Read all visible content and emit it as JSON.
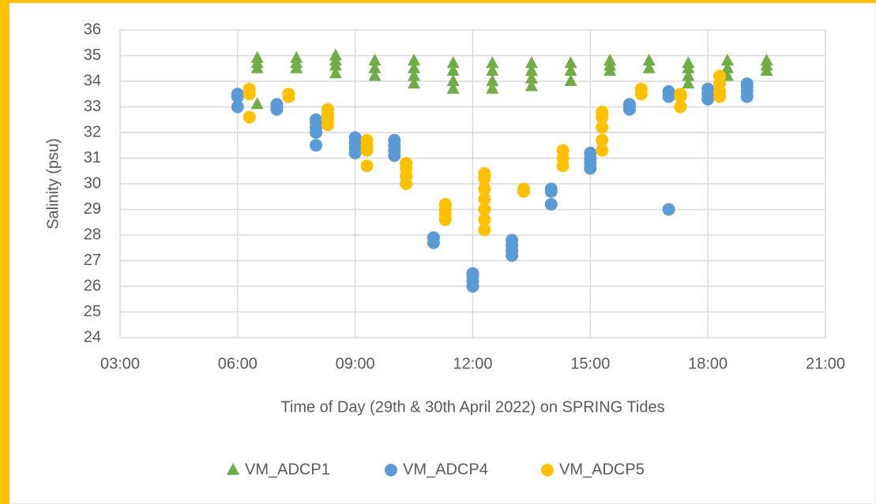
{
  "chart_data": {
    "type": "scatter",
    "xlabel": "Time of Day (29th & 30th April 2022) on SPRING Tides",
    "ylabel": "Salinity (psu)",
    "xlim": [
      3,
      21
    ],
    "xticks": [
      {
        "value": 3,
        "label": "03:00"
      },
      {
        "value": 6,
        "label": "06:00"
      },
      {
        "value": 9,
        "label": "09:00"
      },
      {
        "value": 12,
        "label": "12:00"
      },
      {
        "value": 15,
        "label": "15:00"
      },
      {
        "value": 18,
        "label": "18:00"
      },
      {
        "value": 21,
        "label": "21:00"
      }
    ],
    "ylim": [
      24,
      36
    ],
    "yticks": [
      24,
      25,
      26,
      27,
      28,
      29,
      30,
      31,
      32,
      33,
      34,
      35,
      36
    ],
    "grid": true,
    "legend": "bottom",
    "series": [
      {
        "name": "VM_ADCP1",
        "color": "#70ad47",
        "marker": "triangle",
        "x": [
          6.5,
          6.5,
          6.5,
          6.5,
          7.5,
          7.5,
          7.5,
          8.5,
          8.5,
          8.5,
          8.5,
          9.5,
          9.5,
          9.5,
          10.5,
          10.5,
          10.5,
          10.5,
          11.5,
          11.5,
          11.5,
          11.5,
          12.5,
          12.5,
          12.5,
          12.5,
          13.5,
          13.5,
          13.5,
          13.5,
          14.5,
          14.5,
          14.5,
          15.5,
          15.5,
          15.5,
          16.5,
          16.5,
          17.5,
          17.5,
          17.5,
          17.5,
          18.5,
          18.5,
          18.5,
          19.5,
          19.5,
          19.5
        ],
        "values": [
          34.5,
          34.7,
          34.9,
          33.1,
          34.5,
          34.7,
          34.9,
          34.3,
          34.6,
          34.8,
          35.0,
          34.2,
          34.5,
          34.8,
          33.9,
          34.2,
          34.5,
          34.8,
          33.7,
          34.0,
          34.4,
          34.7,
          33.7,
          34.0,
          34.4,
          34.7,
          33.8,
          34.1,
          34.4,
          34.7,
          34.0,
          34.4,
          34.7,
          34.4,
          34.6,
          34.8,
          34.5,
          34.8,
          33.9,
          34.2,
          34.5,
          34.7,
          34.2,
          34.5,
          34.8,
          34.4,
          34.6,
          34.8
        ]
      },
      {
        "name": "VM_ADCP4",
        "color": "#5b9bd5",
        "marker": "circle",
        "x": [
          6,
          6,
          6,
          7,
          7,
          7,
          8,
          8,
          8,
          8,
          8,
          9,
          9,
          9,
          9,
          10,
          10,
          10,
          10,
          11,
          11,
          12,
          12,
          12,
          12,
          13,
          13,
          13,
          13,
          14,
          14,
          14,
          15,
          15,
          15,
          15,
          16,
          16,
          16,
          17,
          17,
          17,
          18,
          18,
          18,
          19,
          19,
          19,
          19
        ],
        "values": [
          33.0,
          33.4,
          33.5,
          32.9,
          33.0,
          33.1,
          31.5,
          32.0,
          32.2,
          32.4,
          32.5,
          31.2,
          31.4,
          31.6,
          31.8,
          31.1,
          31.3,
          31.5,
          31.7,
          27.7,
          27.9,
          26.0,
          26.2,
          26.4,
          26.5,
          27.2,
          27.4,
          27.6,
          27.8,
          29.2,
          29.7,
          29.8,
          30.6,
          30.8,
          31.0,
          31.2,
          32.9,
          33.0,
          33.1,
          29.0,
          33.4,
          33.6,
          33.3,
          33.5,
          33.7,
          33.4,
          33.6,
          33.8,
          33.9
        ]
      },
      {
        "name": "VM_ADCP5",
        "color": "#ffc000",
        "marker": "circle",
        "x": [
          6.3,
          6.3,
          6.3,
          7.3,
          7.3,
          8.3,
          8.3,
          8.3,
          8.3,
          9.3,
          9.3,
          9.3,
          9.3,
          10.3,
          10.3,
          10.3,
          10.3,
          11.3,
          11.3,
          11.3,
          11.3,
          12.3,
          12.3,
          12.3,
          12.3,
          12.3,
          12.3,
          12.3,
          13.3,
          13.3,
          14.3,
          14.3,
          14.3,
          15.3,
          15.3,
          15.3,
          15.3,
          15.3,
          16.3,
          16.3,
          17.3,
          17.3,
          17.3,
          18.3,
          18.3,
          18.3,
          18.3
        ],
        "values": [
          32.6,
          33.5,
          33.7,
          33.4,
          33.5,
          32.3,
          32.5,
          32.7,
          32.9,
          30.7,
          31.3,
          31.5,
          31.7,
          30.0,
          30.3,
          30.6,
          30.8,
          28.6,
          28.8,
          29.0,
          29.2,
          28.2,
          28.6,
          29.0,
          29.4,
          29.8,
          30.2,
          30.4,
          29.7,
          29.8,
          30.7,
          31.0,
          31.3,
          31.3,
          31.7,
          32.2,
          32.6,
          32.8,
          33.5,
          33.7,
          33.0,
          33.4,
          33.5,
          33.4,
          33.6,
          33.9,
          34.2
        ]
      }
    ]
  }
}
